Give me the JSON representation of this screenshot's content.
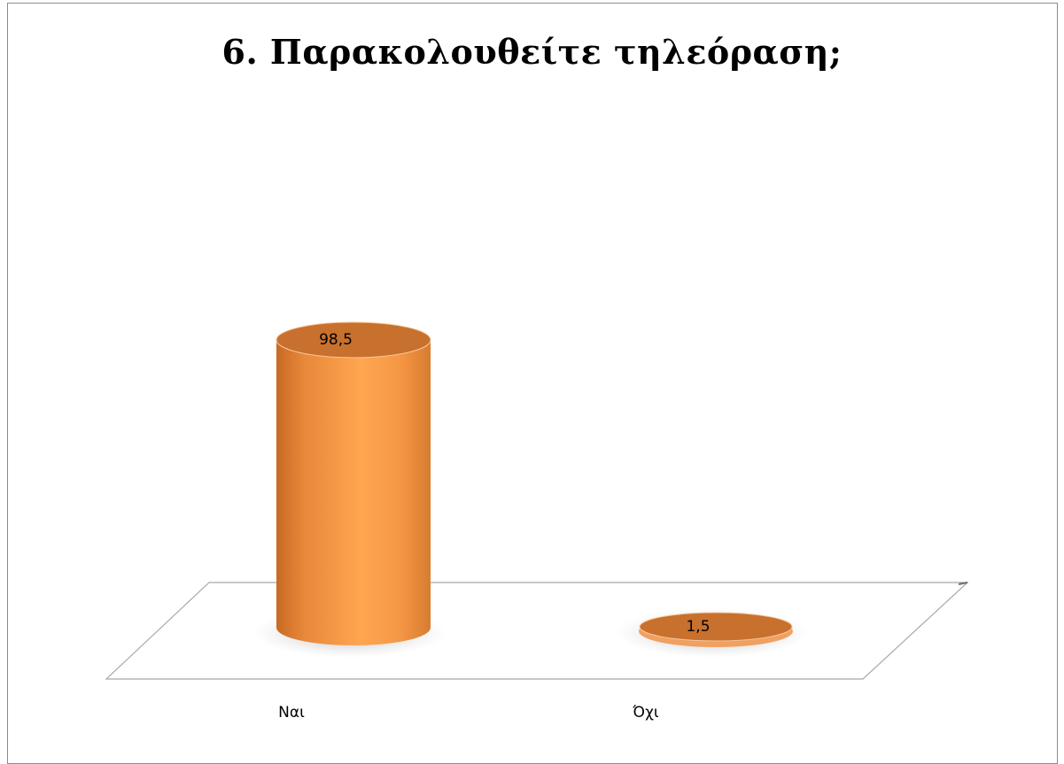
{
  "chart_data": {
    "type": "bar",
    "title": "6. Παρακολουθείτε τηλεόραση;",
    "categories": [
      "Ναι",
      "Όχι"
    ],
    "values": [
      98.5,
      1.5
    ],
    "data_labels": [
      "98,5",
      "1,5"
    ],
    "ylim": [
      0,
      100
    ],
    "grid": false,
    "legend": "none",
    "bar_shape": "cylinder-3d",
    "colors": {
      "bar_body": "#f29a4a",
      "bar_top": "#c8702e",
      "bar_shadow": "#d9782c",
      "floor_edge": "#9a9a9a",
      "frame": "#8c8c8c"
    }
  }
}
